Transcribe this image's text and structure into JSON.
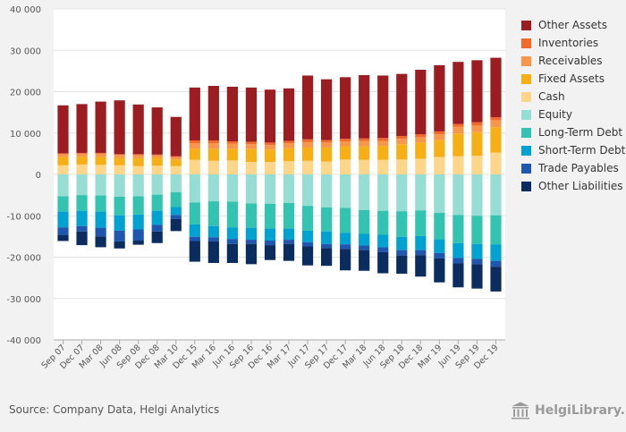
{
  "chart_data": {
    "type": "bar",
    "stacked": true,
    "categories": [
      "Sep 07",
      "Dec 07",
      "Mar 08",
      "Jun 08",
      "Sep 08",
      "Dec 08",
      "Mar 10",
      "Dec 15",
      "Mar 16",
      "Jun 16",
      "Sep 16",
      "Dec 16",
      "Mar 17",
      "Jun 17",
      "Sep 17",
      "Dec 17",
      "Mar 18",
      "Jun 18",
      "Sep 18",
      "Dec 18",
      "Mar 19",
      "Jun 19",
      "Sep 19",
      "Dec 19"
    ],
    "x_tick_labels": [
      "Sep 07",
      "Dec 07",
      "Mar 08",
      "Jun 08",
      "Sep 08",
      "Dec 08",
      "Mar 10",
      "Dec 15",
      "Mar 16",
      "Jun 16",
      "Sep 16",
      "Dec 16",
      "Mar 17",
      "Jun 17",
      "Sep 17",
      "Dec 17",
      "Mar 18",
      "Jun 18",
      "Sep 18",
      "Dec 18",
      "Mar 19",
      "Jun 19",
      "Sep 19",
      "Dec 19"
    ],
    "y_ticks": [
      -40000,
      -30000,
      -20000,
      -10000,
      0,
      10000,
      20000,
      30000,
      40000
    ],
    "y_tick_labels": [
      "-40 000",
      "-30 000",
      "-20 000",
      "-10 000",
      "0",
      "10 000",
      "20 000",
      "30 000",
      "40 000"
    ],
    "ylim": [
      -40000,
      40000
    ],
    "grid": true,
    "legend_position": "right",
    "assets": [
      {
        "name": "Cash",
        "color": "#fdd68a",
        "values": [
          2200,
          2400,
          2300,
          2200,
          2000,
          2100,
          2000,
          3500,
          3300,
          3400,
          3000,
          3000,
          3200,
          3300,
          3100,
          3600,
          3500,
          3500,
          3600,
          3800,
          4200,
          4400,
          4500,
          5300
        ]
      },
      {
        "name": "Fixed Assets",
        "color": "#f6b015",
        "values": [
          2000,
          1900,
          1900,
          1800,
          1900,
          1900,
          1600,
          2700,
          2900,
          2800,
          3200,
          3000,
          3100,
          3200,
          3400,
          3200,
          3300,
          3400,
          3700,
          3900,
          4100,
          5500,
          5700,
          6100
        ]
      },
      {
        "name": "Receivables",
        "color": "#f6974c",
        "values": [
          700,
          700,
          800,
          700,
          700,
          600,
          600,
          1300,
          1300,
          1200,
          1100,
          1100,
          1200,
          1300,
          1200,
          1200,
          1300,
          1200,
          1300,
          1300,
          1400,
          1600,
          1600,
          1700
        ]
      },
      {
        "name": "Inventories",
        "color": "#f2692a",
        "values": [
          200,
          200,
          200,
          200,
          300,
          200,
          200,
          700,
          700,
          600,
          600,
          600,
          600,
          700,
          600,
          600,
          600,
          700,
          700,
          700,
          700,
          700,
          800,
          700
        ]
      },
      {
        "name": "Other Assets",
        "color": "#9b1c21",
        "values": [
          11600,
          11800,
          12400,
          13000,
          12000,
          11400,
          9500,
          12800,
          13200,
          13200,
          13100,
          12800,
          12700,
          15400,
          14700,
          14900,
          15300,
          15100,
          15000,
          15600,
          16000,
          15000,
          15000,
          14400
        ]
      }
    ],
    "liabilities": [
      {
        "name": "Equity",
        "color": "#96ddd3",
        "values": [
          5300,
          5000,
          5100,
          5400,
          5300,
          4900,
          4300,
          6800,
          6500,
          6600,
          7000,
          7100,
          6900,
          7600,
          8000,
          8100,
          8600,
          8800,
          8900,
          8700,
          9300,
          9800,
          10000,
          9900
        ]
      },
      {
        "name": "Long-Term Debt",
        "color": "#33c3b1",
        "values": [
          3700,
          3800,
          3900,
          4500,
          4400,
          3900,
          3600,
          5300,
          6000,
          6200,
          5900,
          6000,
          6200,
          6000,
          5800,
          6000,
          5700,
          5800,
          6200,
          6200,
          6400,
          6800,
          6800,
          7000
        ]
      },
      {
        "name": "Short-Term Debt",
        "color": "#00a2d1",
        "values": [
          3800,
          3700,
          3900,
          3700,
          3600,
          3400,
          1900,
          3000,
          2700,
          2800,
          2900,
          2900,
          2700,
          2800,
          3000,
          2800,
          2900,
          3000,
          3200,
          3400,
          3300,
          3600,
          3600,
          4000
        ]
      },
      {
        "name": "Trade Payables",
        "color": "#1f57b0",
        "values": [
          1900,
          1300,
          2100,
          2600,
          2700,
          1600,
          1000,
          1000,
          1000,
          1200,
          1000,
          1100,
          1000,
          1000,
          1000,
          1100,
          1100,
          1200,
          1300,
          1200,
          1300,
          1300,
          1300,
          1400
        ]
      },
      {
        "name": "Other Liabilities",
        "color": "#0a2c5e",
        "values": [
          1400,
          3300,
          2600,
          1700,
          1000,
          2800,
          2900,
          5000,
          5200,
          4600,
          4900,
          3600,
          4100,
          4600,
          4300,
          5200,
          5000,
          5100,
          4400,
          5200,
          5800,
          5800,
          5900,
          6000
        ]
      }
    ]
  },
  "legend": [
    {
      "label": "Other Assets",
      "color": "#9b1c21"
    },
    {
      "label": "Inventories",
      "color": "#f2692a"
    },
    {
      "label": "Receivables",
      "color": "#f6974c"
    },
    {
      "label": "Fixed Assets",
      "color": "#f6b015"
    },
    {
      "label": "Cash",
      "color": "#fdd68a"
    },
    {
      "label": "Equity",
      "color": "#96ddd3"
    },
    {
      "label": "Long-Term Debt",
      "color": "#33c3b1"
    },
    {
      "label": "Short-Term Debt",
      "color": "#00a2d1"
    },
    {
      "label": "Trade Payables",
      "color": "#1f57b0"
    },
    {
      "label": "Other Liabilities",
      "color": "#0a2c5e"
    }
  ],
  "footer": {
    "source": "Source: Company Data, Helgi Analytics",
    "brand": "HelgiLibrary."
  },
  "colors": {
    "background": "#f2f2f2",
    "plot_background": "#ffffff",
    "grid": "#e3e3e3",
    "brand": "#9a9a9a"
  }
}
